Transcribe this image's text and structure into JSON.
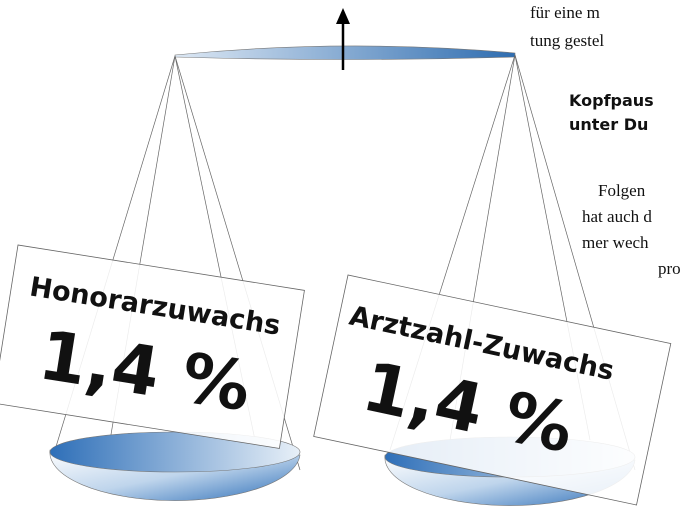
{
  "illustration": {
    "left_card": {
      "label": "Honorarzuwachs",
      "value": "1,4 %"
    },
    "right_card": {
      "label": "Arztzahl-Zuwachs",
      "value": "1,4 %"
    }
  },
  "article": {
    "lines_top": [
      "für eine m",
      "tung gestel"
    ],
    "heading": [
      "Kopfpaus",
      "unter Du"
    ],
    "lines": [
      "Folgen",
      "hat auch d",
      "mer wech",
      "pro"
    ]
  }
}
